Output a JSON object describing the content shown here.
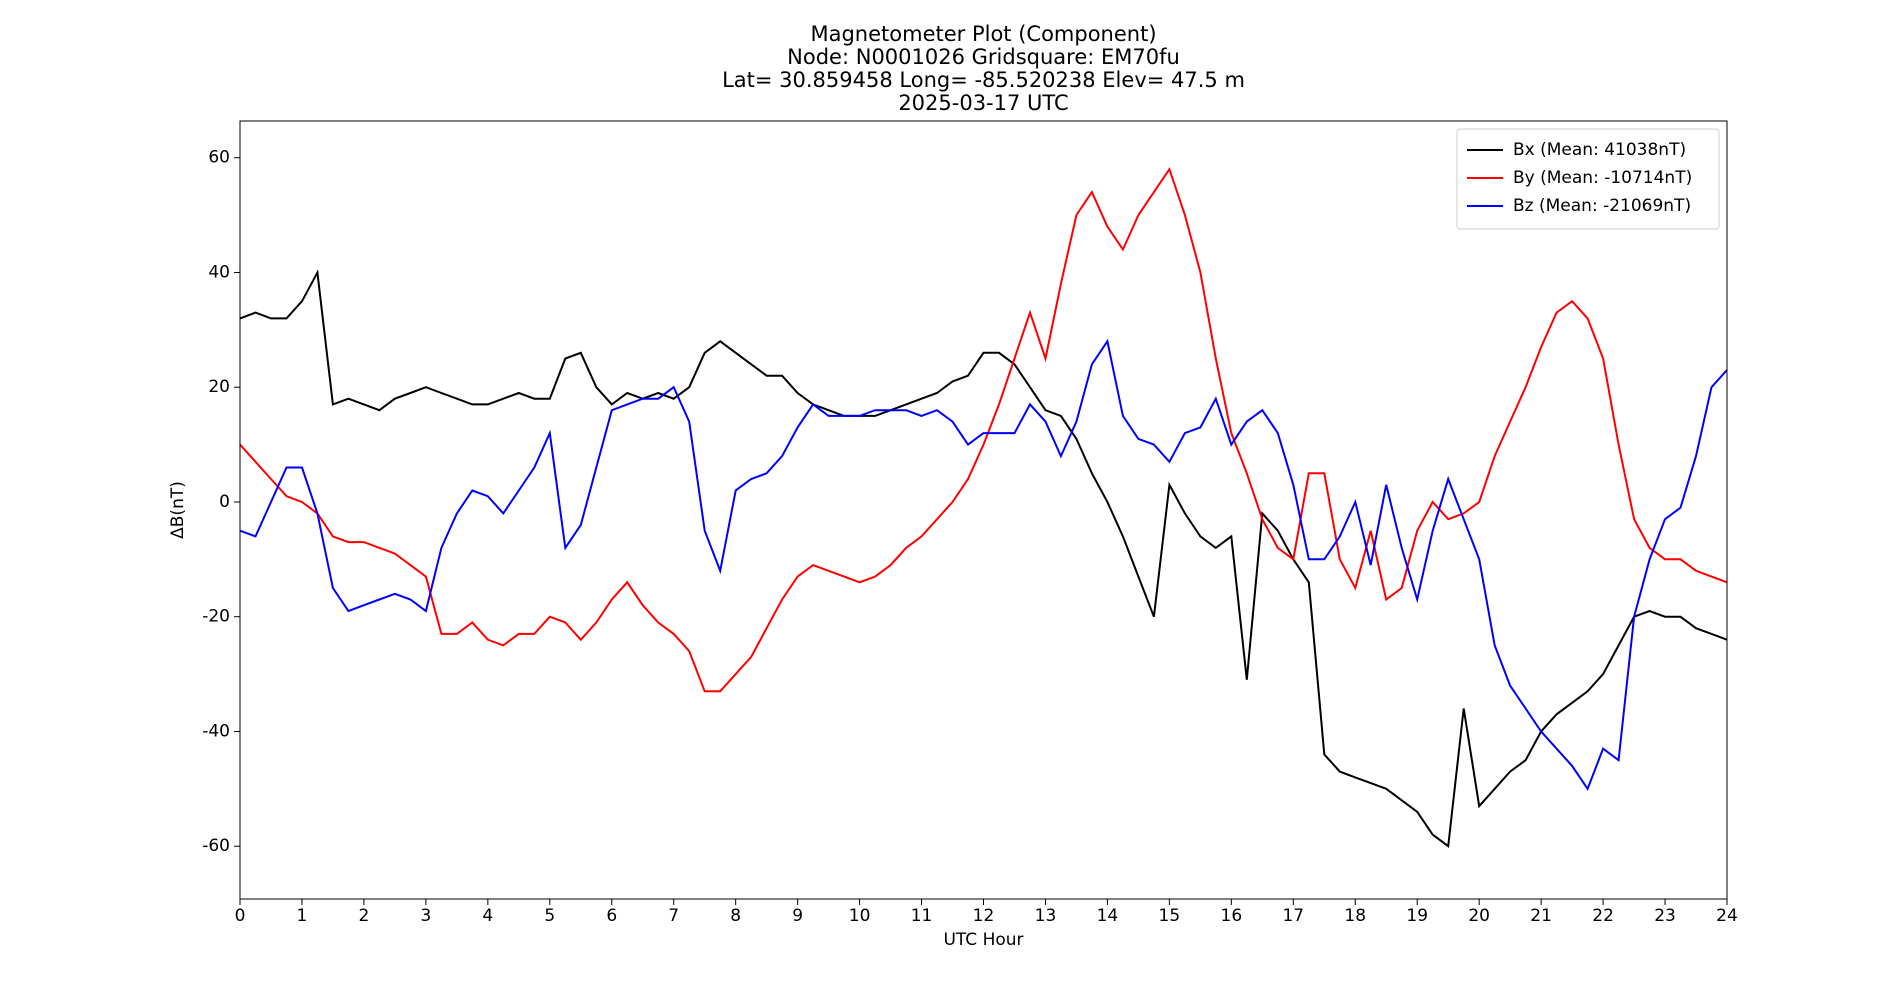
{
  "chart_data": {
    "type": "line",
    "title": [
      "Magnetometer Plot (Component)",
      "Node:  N0001026     Gridsquare:  EM70fu",
      "Lat= 30.859458    Long= -85.520238    Elev= 47.5 m",
      "2025-03-17  UTC"
    ],
    "x_label": "UTC Hour",
    "y_label": "ΔB(nT)",
    "xlim": [
      0,
      24
    ],
    "xticks": [
      0,
      1,
      2,
      3,
      4,
      5,
      6,
      7,
      8,
      9,
      10,
      11,
      12,
      13,
      14,
      15,
      16,
      17,
      18,
      19,
      20,
      21,
      22,
      23,
      24
    ],
    "ylim": [
      -69.2,
      66.4
    ],
    "yticks": [
      -60,
      -40,
      -20,
      0,
      20,
      40,
      60
    ],
    "legend": "upper right",
    "x": [
      0,
      0.25,
      0.5,
      0.75,
      1,
      1.25,
      1.5,
      1.75,
      2,
      2.25,
      2.5,
      2.75,
      3,
      3.25,
      3.5,
      3.75,
      4,
      4.25,
      4.5,
      4.75,
      5,
      5.25,
      5.5,
      5.75,
      6,
      6.25,
      6.5,
      6.75,
      7,
      7.25,
      7.5,
      7.75,
      8,
      8.25,
      8.5,
      8.75,
      9,
      9.25,
      9.5,
      9.75,
      10,
      10.25,
      10.5,
      10.75,
      11,
      11.25,
      11.5,
      11.75,
      12,
      12.25,
      12.5,
      12.75,
      13,
      13.25,
      13.5,
      13.75,
      14,
      14.25,
      14.5,
      14.75,
      15,
      15.25,
      15.5,
      15.75,
      16,
      16.25,
      16.5,
      16.75,
      17,
      17.25,
      17.5,
      17.75,
      18,
      18.25,
      18.5,
      18.75,
      19,
      19.25,
      19.5,
      19.75,
      20,
      20.25,
      20.5,
      20.75,
      21,
      21.25,
      21.5,
      21.75,
      22,
      22.25,
      22.5,
      22.75,
      23,
      23.25,
      23.5,
      23.75,
      24
    ],
    "series": [
      {
        "name": "Bx (Mean: 41038nT)",
        "color": "#000000",
        "values": [
          32,
          33,
          32,
          32,
          35,
          40,
          17,
          18,
          17,
          16,
          18,
          19,
          20,
          19,
          18,
          17,
          17,
          18,
          19,
          18,
          18,
          25,
          26,
          20,
          17,
          19,
          18,
          19,
          18,
          20,
          26,
          28,
          26,
          24,
          22,
          22,
          19,
          17,
          16,
          15,
          15,
          15,
          16,
          17,
          18,
          19,
          21,
          22,
          26,
          26,
          24,
          20,
          16,
          15,
          11,
          5,
          0,
          -6,
          -13,
          -20,
          3,
          -2,
          -6,
          -8,
          -6,
          -31,
          -2,
          -5,
          -10,
          -14,
          -44,
          -47,
          -48,
          -49,
          -50,
          -52,
          -54,
          -58,
          -60,
          -36,
          -53,
          -50,
          -47,
          -45,
          -40,
          -37,
          -35,
          -33,
          -30,
          -25,
          -20,
          -19,
          -20,
          -20,
          -22,
          -23,
          -24
        ]
      },
      {
        "name": "By (Mean: -10714nT)",
        "color": "#ff0000",
        "values": [
          10,
          7,
          4,
          1,
          0,
          -2,
          -6,
          -7,
          -7,
          -8,
          -9,
          -11,
          -13,
          -23,
          -23,
          -21,
          -24,
          -25,
          -23,
          -23,
          -20,
          -21,
          -24,
          -21,
          -17,
          -14,
          -18,
          -21,
          -23,
          -26,
          -33,
          -33,
          -30,
          -27,
          -22,
          -17,
          -13,
          -11,
          -12,
          -13,
          -14,
          -13,
          -11,
          -8,
          -6,
          -3,
          0,
          4,
          10,
          17,
          25,
          33,
          25,
          38,
          50,
          54,
          48,
          44,
          50,
          54,
          58,
          50,
          40,
          25,
          12,
          5,
          -3,
          -8,
          -10,
          5,
          5,
          -10,
          -15,
          -5,
          -17,
          -15,
          -5,
          0,
          -3,
          -2,
          0,
          8,
          14,
          20,
          27,
          33,
          35,
          32,
          25,
          10,
          -3,
          -8,
          -10,
          -10,
          -12,
          -13,
          -14
        ]
      },
      {
        "name": "Bz (Mean: -21069nT)",
        "color": "#0000ff",
        "values": [
          -5,
          -6,
          0,
          6,
          6,
          -2,
          -15,
          -19,
          -18,
          -17,
          -16,
          -17,
          -19,
          -8,
          -2,
          2,
          1,
          -2,
          2,
          6,
          12,
          -8,
          -4,
          6,
          16,
          17,
          18,
          18,
          20,
          14,
          -5,
          -12,
          2,
          4,
          5,
          8,
          13,
          17,
          15,
          15,
          15,
          16,
          16,
          16,
          15,
          16,
          14,
          10,
          12,
          12,
          12,
          17,
          14,
          8,
          14,
          24,
          28,
          15,
          11,
          10,
          7,
          12,
          13,
          18,
          10,
          14,
          16,
          12,
          3,
          -10,
          -10,
          -6,
          0,
          -11,
          3,
          -8,
          -17,
          -5,
          4,
          -3,
          -10,
          -25,
          -32,
          -36,
          -40,
          -43,
          -46,
          -50,
          -43,
          -45,
          -20,
          -10,
          -3,
          -1,
          8,
          20,
          23
        ]
      }
    ]
  }
}
